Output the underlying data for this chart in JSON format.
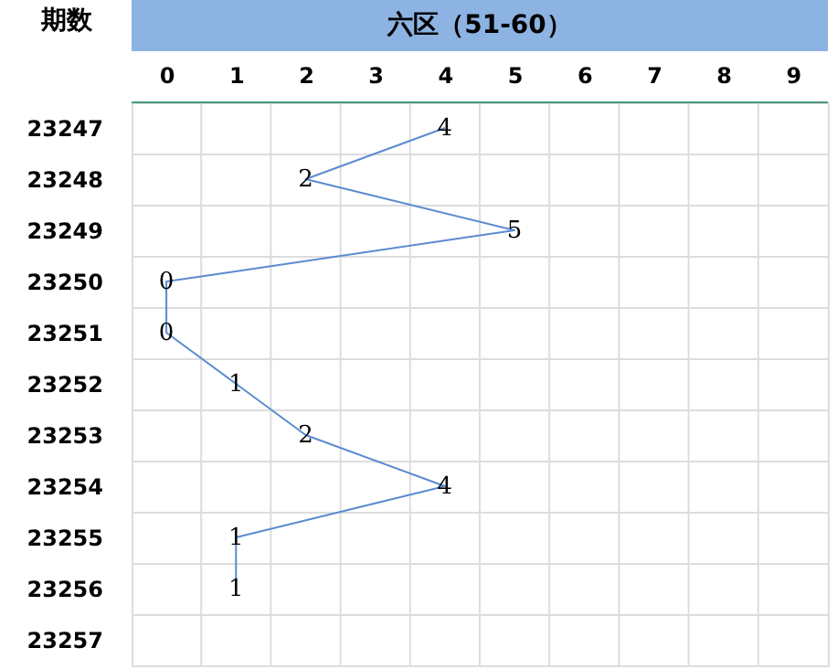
{
  "chart_data": {
    "type": "line",
    "orientation": "horizontal",
    "title": "六区（51-60）",
    "ylabel": "期数",
    "categories": [
      "23247",
      "23248",
      "23249",
      "23250",
      "23251",
      "23252",
      "23253",
      "23254",
      "23255",
      "23256",
      "23257"
    ],
    "series": [
      {
        "color": "#5b8bd0",
        "values": [
          4,
          2,
          5,
          0,
          0,
          1,
          2,
          4,
          1,
          1,
          null
        ]
      }
    ],
    "xlim": [
      -0.5,
      9.5
    ],
    "xticks": [
      0,
      1,
      2,
      3,
      4,
      5,
      6,
      7,
      8,
      9
    ],
    "grid": true,
    "data_labels": true,
    "line_style": "solid"
  }
}
